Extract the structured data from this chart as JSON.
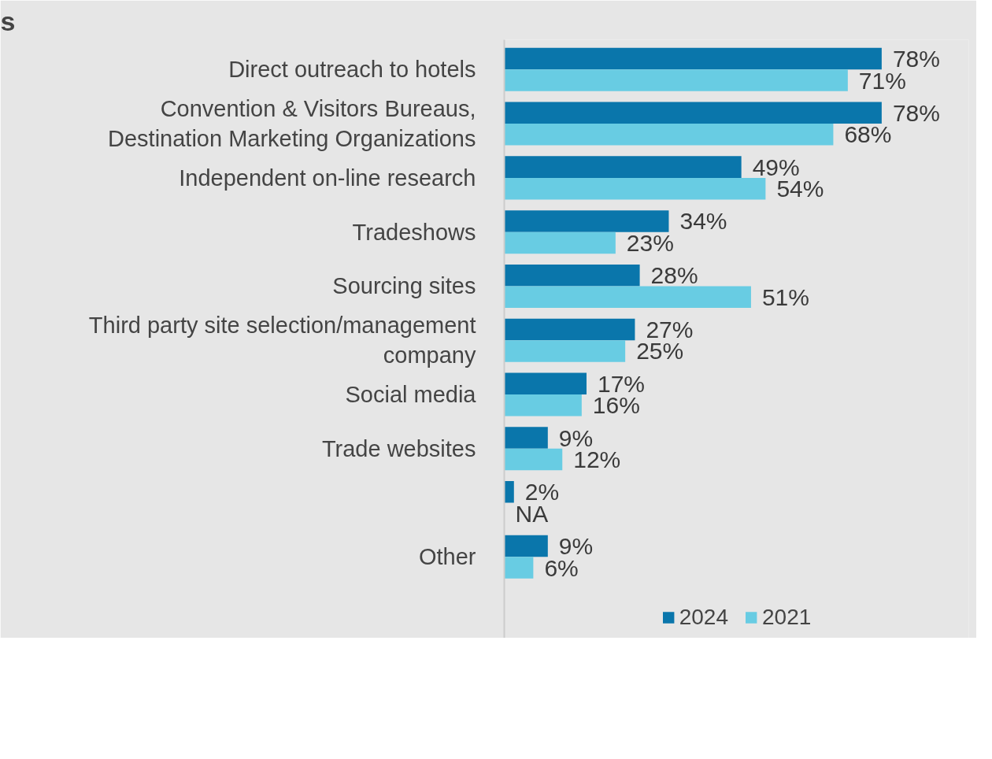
{
  "chart_data": {
    "type": "bar",
    "orientation": "horizontal",
    "title": "s",
    "categories": [
      "Direct outreach to hotels",
      "Convention & Visitors Bureaus,\nDestination Marketing Organizations",
      "Independent on-line research",
      "Tradeshows",
      "Sourcing sites",
      "Third party site selection/management\ncompany",
      "Social media",
      "Trade websites",
      null,
      "Other"
    ],
    "series": [
      {
        "name": "2024",
        "color": "#0a76ab",
        "values": [
          78,
          78,
          49,
          34,
          28,
          27,
          17,
          9,
          2,
          9
        ],
        "value_labels": [
          "78%",
          "78%",
          "49%",
          "34%",
          "28%",
          "27%",
          "17%",
          "9%",
          "2%",
          "9%"
        ]
      },
      {
        "name": "2021",
        "color": "#68cce3",
        "values": [
          71,
          68,
          54,
          23,
          51,
          25,
          16,
          12,
          null,
          6
        ],
        "value_labels": [
          "71%",
          "68%",
          "54%",
          "23%",
          "51%",
          "25%",
          "16%",
          "12%",
          "NA",
          "6%"
        ]
      }
    ],
    "xlim": [
      0,
      96
    ],
    "tick_labels": "y",
    "legend": "bottom"
  }
}
